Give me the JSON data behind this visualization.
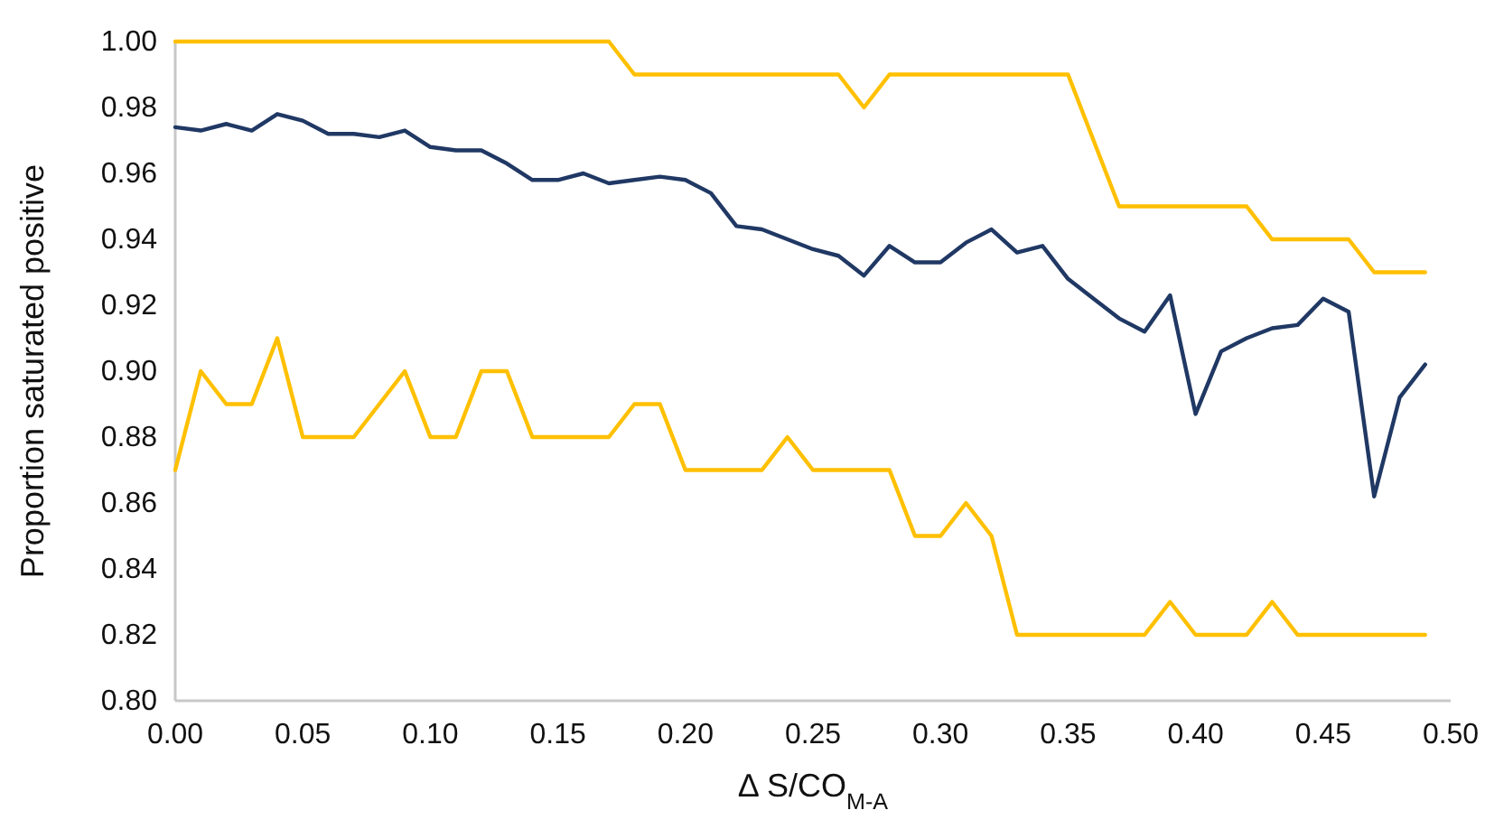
{
  "chart_data": {
    "type": "line",
    "xlabel": "Δ S/CO$_{M-A}$",
    "ylabel": "Proportion saturated positive",
    "x": [
      0,
      0.01,
      0.02,
      0.03,
      0.04,
      0.05,
      0.06,
      0.07,
      0.08,
      0.09,
      0.1,
      0.11,
      0.12,
      0.13,
      0.14,
      0.15,
      0.16,
      0.17,
      0.18,
      0.19,
      0.2,
      0.21,
      0.22,
      0.23,
      0.24,
      0.25,
      0.26,
      0.27,
      0.28,
      0.29,
      0.3,
      0.31,
      0.32,
      0.33,
      0.34,
      0.35,
      0.36,
      0.37,
      0.38,
      0.39,
      0.4,
      0.41,
      0.42,
      0.43,
      0.44,
      0.45,
      0.46,
      0.47,
      0.48,
      0.49
    ],
    "series": [
      {
        "color": "#ffc000",
        "values": [
          1,
          1,
          1,
          1,
          1,
          1,
          1,
          1,
          1,
          1,
          1,
          1,
          1,
          1,
          1,
          1,
          1,
          1,
          0.99,
          0.99,
          0.99,
          0.99,
          0.99,
          0.99,
          0.99,
          0.99,
          0.99,
          0.98,
          0.99,
          0.99,
          0.99,
          0.99,
          0.99,
          0.99,
          0.99,
          0.99,
          0.97,
          0.95,
          0.95,
          0.95,
          0.95,
          0.95,
          0.95,
          0.94,
          0.94,
          0.94,
          0.94,
          0.93,
          0.93,
          0.93
        ]
      },
      {
        "color": "#203864",
        "values": [
          0.974,
          0.973,
          0.975,
          0.973,
          0.978,
          0.976,
          0.972,
          0.972,
          0.971,
          0.973,
          0.968,
          0.967,
          0.967,
          0.963,
          0.958,
          0.958,
          0.96,
          0.957,
          0.958,
          0.959,
          0.958,
          0.954,
          0.944,
          0.943,
          0.94,
          0.937,
          0.935,
          0.929,
          0.938,
          0.933,
          0.933,
          0.939,
          0.943,
          0.936,
          0.938,
          0.928,
          0.922,
          0.916,
          0.912,
          0.923,
          0.887,
          0.906,
          0.91,
          0.913,
          0.914,
          0.922,
          0.918,
          0.862,
          0.892,
          0.902
        ]
      },
      {
        "color": "#ffc000",
        "values": [
          0.87,
          0.9,
          0.89,
          0.89,
          0.91,
          0.88,
          0.88,
          0.88,
          0.89,
          0.9,
          0.88,
          0.88,
          0.9,
          0.9,
          0.88,
          0.88,
          0.88,
          0.88,
          0.89,
          0.89,
          0.87,
          0.87,
          0.87,
          0.87,
          0.88,
          0.87,
          0.87,
          0.87,
          0.87,
          0.85,
          0.85,
          0.86,
          0.85,
          0.82,
          0.82,
          0.82,
          0.82,
          0.82,
          0.82,
          0.83,
          0.82,
          0.82,
          0.82,
          0.83,
          0.82,
          0.82,
          0.82,
          0.82,
          0.82,
          0.82
        ]
      }
    ],
    "xlim": [
      0,
      0.5
    ],
    "xticks": [
      {
        "value": 0,
        "label": "0.00"
      },
      {
        "value": 0.05,
        "label": "0.05"
      },
      {
        "value": 0.1,
        "label": "0.10"
      },
      {
        "value": 0.15,
        "label": "0.15"
      },
      {
        "value": 0.2,
        "label": "0.20"
      },
      {
        "value": 0.25,
        "label": "0.25"
      },
      {
        "value": 0.3,
        "label": "0.30"
      },
      {
        "value": 0.35,
        "label": "0.35"
      },
      {
        "value": 0.4,
        "label": "0.40"
      },
      {
        "value": 0.45,
        "label": "0.45"
      },
      {
        "value": 0.5,
        "label": "0.50"
      }
    ],
    "ylim": [
      0.8,
      1
    ],
    "yticks": [
      {
        "value": 0.8,
        "label": "0.80"
      },
      {
        "value": 0.82,
        "label": "0.82"
      },
      {
        "value": 0.84,
        "label": "0.84"
      },
      {
        "value": 0.86,
        "label": "0.86"
      },
      {
        "value": 0.88,
        "label": "0.88"
      },
      {
        "value": 0.9,
        "label": "0.90"
      },
      {
        "value": 0.92,
        "label": "0.92"
      },
      {
        "value": 0.94,
        "label": "0.94"
      },
      {
        "value": 0.96,
        "label": "0.96"
      },
      {
        "value": 0.98,
        "label": "0.98"
      },
      {
        "value": 1,
        "label": "1.00"
      }
    ],
    "grid": false
  }
}
